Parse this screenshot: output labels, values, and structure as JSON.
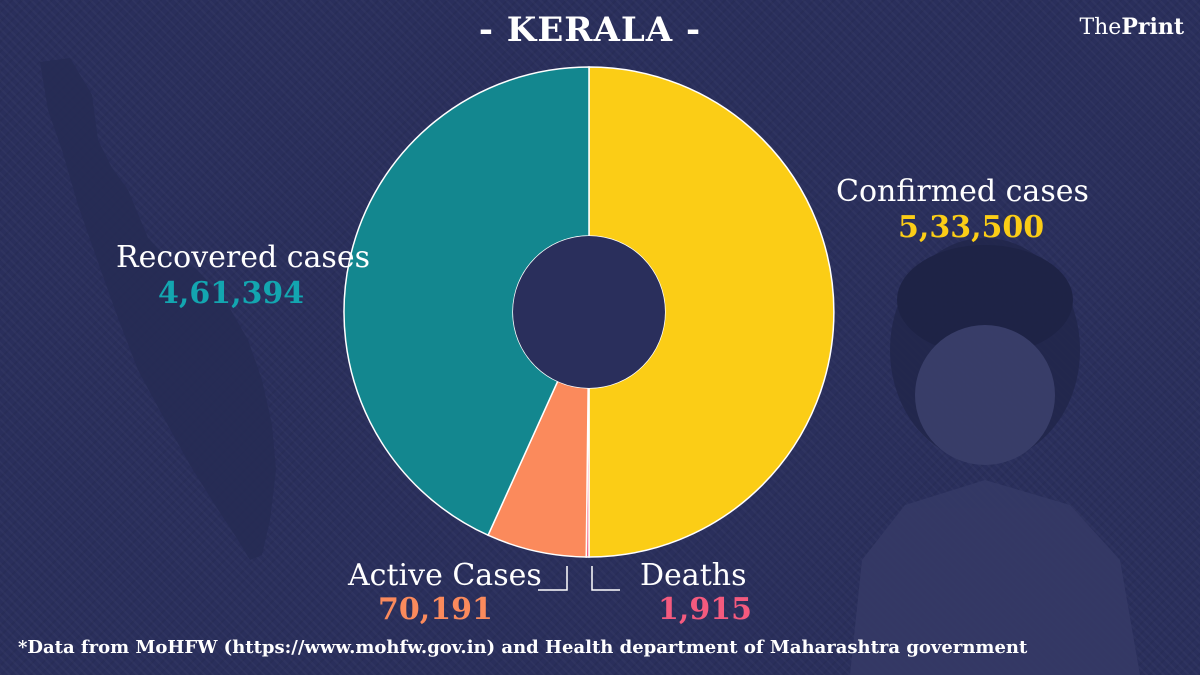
{
  "header": {
    "title": "- KERALA -",
    "brand_part1": "The",
    "brand_part2": "Print"
  },
  "colors": {
    "background": "#2a2f5c",
    "recovered": "#13878f",
    "active": "#fb8a5c",
    "deaths": "#f45a7e",
    "confirmed": "#fbcd16"
  },
  "chart_data": {
    "type": "pie",
    "title": "- KERALA -",
    "slices": [
      {
        "label": "Confirmed cases",
        "value": 533500,
        "display": "5,33,500",
        "color": "#fbcd16"
      },
      {
        "label": "Deaths",
        "value": 1915,
        "display": "1,915",
        "color": "#f45a7e"
      },
      {
        "label": "Active Cases",
        "value": 70191,
        "display": "70,191",
        "color": "#fb8a5c"
      },
      {
        "label": "Recovered cases",
        "value": 461394,
        "display": "4,61,394",
        "color": "#13878f"
      }
    ],
    "legend": "none",
    "style": "donut"
  },
  "footnote": "*Data from MoHFW (https://www.mohfw.gov.in)  and Health department of  Maharashtra government"
}
